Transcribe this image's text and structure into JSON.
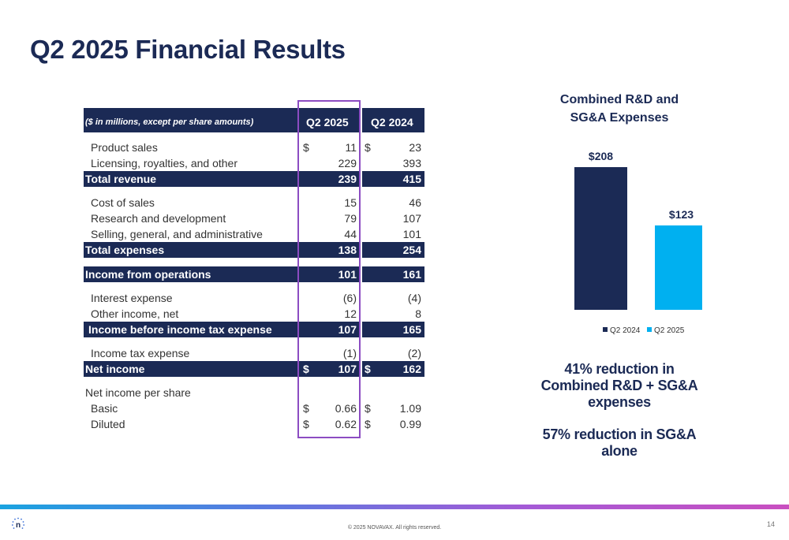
{
  "title": "Q2 2025 Financial Results",
  "table": {
    "header_label": "($ in millions, except per share amounts)",
    "col1": "Q2 2025",
    "col2": "Q2 2024",
    "rows": [
      {
        "label": "Product sales",
        "d1": "$",
        "v1": "11",
        "d2": "$",
        "v2": "23"
      },
      {
        "label": "Licensing, royalties, and other",
        "v1": "229",
        "v2": "393"
      },
      {
        "label": "Total revenue",
        "v1": "239",
        "v2": "415"
      },
      {
        "label": "Cost of sales",
        "v1": "15",
        "v2": "46"
      },
      {
        "label": "Research and development",
        "v1": "79",
        "v2": "107"
      },
      {
        "label": "Selling, general, and administrative",
        "v1": "44",
        "v2": "101"
      },
      {
        "label": "Total expenses",
        "v1": "138",
        "v2": "254"
      },
      {
        "label": "Income from operations",
        "v1": "101",
        "v2": "161"
      },
      {
        "label": "Interest expense",
        "v1": "(6)",
        "v2": "(4)"
      },
      {
        "label": "Other income, net",
        "v1": "12",
        "v2": "8"
      },
      {
        "label": "Income before income tax expense",
        "v1": "107",
        "v2": "165"
      },
      {
        "label": "Income tax expense",
        "v1": "(1)",
        "v2": "(2)"
      },
      {
        "label": "Net income",
        "d1": "$",
        "v1": "107",
        "d2": "$",
        "v2": "162"
      },
      {
        "label": "Net income per share"
      },
      {
        "label": "Basic",
        "d1": "$",
        "v1": "0.66",
        "d2": "$",
        "v2": "1.09"
      },
      {
        "label": "Diluted",
        "d1": "$",
        "v1": "0.62",
        "d2": "$",
        "v2": "0.99"
      }
    ]
  },
  "chart_data": {
    "type": "bar",
    "title": "Combined R&D and SG&A Expenses",
    "categories": [
      "Q2 2024",
      "Q2 2025"
    ],
    "values": [
      208,
      123
    ],
    "data_labels": [
      "$208",
      "$123"
    ],
    "colors": [
      "#1b2a55",
      "#00b0f0"
    ],
    "legend": [
      "Q2 2024",
      "Q2 2025"
    ],
    "legend_position": "bottom"
  },
  "notes": {
    "line1": "41% reduction in Combined R&D + SG&A expenses",
    "line2": "57% reduction in SG&A alone"
  },
  "footer": {
    "copyright": "© 2025 NOVAVAX. All rights reserved.",
    "page": "14",
    "logo_letter": "n"
  }
}
